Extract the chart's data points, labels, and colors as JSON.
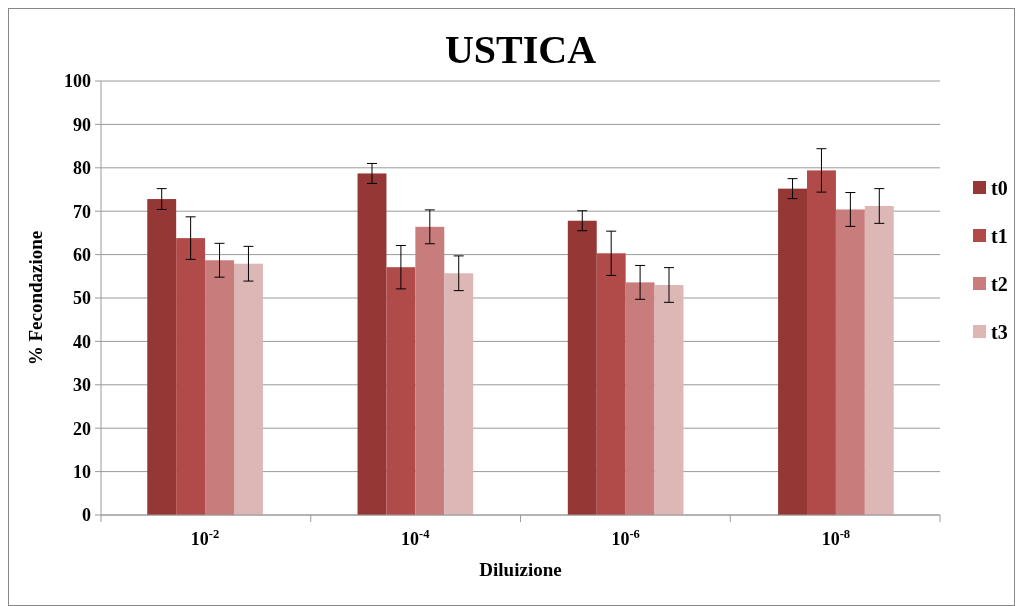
{
  "chart_data": {
    "type": "bar",
    "title": "USTICA",
    "xlabel": "Diluizione",
    "ylabel": "% Fecondazione",
    "categories": [
      "10$^{-2}$",
      "10$^{-4}$",
      "10$^{-6}$",
      "10$^{-8}$"
    ],
    "series": [
      {
        "name": "t0",
        "color": "#953735",
        "values": [
          72.8,
          78.7,
          67.8,
          75.2
        ],
        "errors": [
          2.4,
          2.3,
          2.3,
          2.3
        ]
      },
      {
        "name": "t1",
        "color": "#b14b49",
        "values": [
          63.8,
          57.1,
          60.3,
          79.4
        ],
        "errors": [
          4.9,
          5.0,
          5.1,
          5.0
        ]
      },
      {
        "name": "t2",
        "color": "#c87d7c",
        "values": [
          58.7,
          66.4,
          53.6,
          70.4
        ],
        "errors": [
          3.9,
          3.9,
          3.9,
          3.9
        ]
      },
      {
        "name": "t3",
        "color": "#ddb6b6",
        "values": [
          57.9,
          55.7,
          53.0,
          71.2
        ],
        "errors": [
          4.0,
          4.0,
          4.0,
          4.0
        ]
      }
    ],
    "ylim": [
      0,
      100
    ],
    "yticks": [
      0,
      10,
      20,
      30,
      40,
      50,
      60,
      70,
      80,
      90,
      100
    ],
    "grid": "y",
    "legend": "right"
  }
}
